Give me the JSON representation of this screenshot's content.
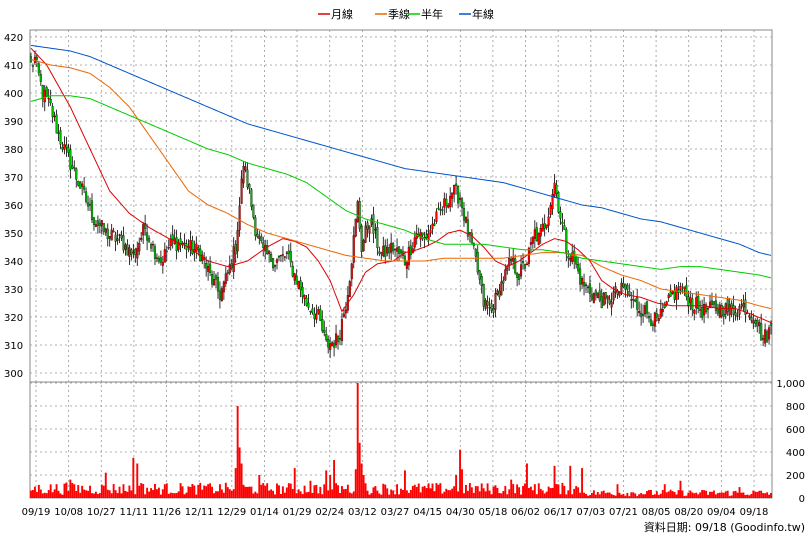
{
  "chart_data": [
    {
      "type": "candlestick",
      "panel": "price",
      "ylim": [
        300,
        420
      ],
      "yticks": [
        300,
        310,
        320,
        330,
        340,
        350,
        360,
        370,
        380,
        390,
        400,
        410,
        420
      ],
      "grid": true,
      "legend_position": "top-center",
      "up_color": "#ff0000",
      "down_color": "#00bb00",
      "series": [
        {
          "name": "月線",
          "color": "#dd0000",
          "key": "ma20"
        },
        {
          "name": "季線",
          "color": "#ee6600",
          "key": "ma60"
        },
        {
          "name": "半年",
          "color": "#00cc00",
          "key": "ma120"
        },
        {
          "name": "年線",
          "color": "#0055cc",
          "key": "ma240"
        }
      ],
      "anchors": {
        "close": [
          [
            0,
            410
          ],
          [
            2,
            412
          ],
          [
            6,
            400
          ],
          [
            10,
            395
          ],
          [
            14,
            385
          ],
          [
            20,
            375
          ],
          [
            26,
            365
          ],
          [
            32,
            355
          ],
          [
            38,
            350
          ],
          [
            46,
            347
          ],
          [
            52,
            342
          ],
          [
            58,
            352
          ],
          [
            62,
            345
          ],
          [
            66,
            340
          ],
          [
            72,
            347
          ],
          [
            80,
            345
          ],
          [
            86,
            343
          ],
          [
            92,
            333
          ],
          [
            96,
            328
          ],
          [
            100,
            335
          ],
          [
            104,
            345
          ],
          [
            106,
            360
          ],
          [
            108,
            375
          ],
          [
            110,
            368
          ],
          [
            114,
            352
          ],
          [
            118,
            343
          ],
          [
            124,
            340
          ],
          [
            130,
            342
          ],
          [
            134,
            335
          ],
          [
            140,
            325
          ],
          [
            146,
            320
          ],
          [
            150,
            310
          ],
          [
            156,
            312
          ],
          [
            160,
            325
          ],
          [
            162,
            335
          ],
          [
            166,
            360
          ],
          [
            168,
            345
          ],
          [
            172,
            355
          ],
          [
            178,
            342
          ],
          [
            184,
            345
          ],
          [
            190,
            340
          ],
          [
            196,
            350
          ],
          [
            200,
            348
          ],
          [
            206,
            355
          ],
          [
            210,
            360
          ],
          [
            214,
            365
          ],
          [
            218,
            363
          ],
          [
            222,
            350
          ],
          [
            226,
            340
          ],
          [
            230,
            325
          ],
          [
            234,
            322
          ],
          [
            238,
            330
          ],
          [
            244,
            340
          ],
          [
            248,
            335
          ],
          [
            252,
            340
          ],
          [
            256,
            350
          ],
          [
            258,
            348
          ],
          [
            262,
            355
          ],
          [
            266,
            368
          ],
          [
            268,
            360
          ],
          [
            272,
            345
          ],
          [
            276,
            340
          ],
          [
            280,
            332
          ],
          [
            286,
            328
          ],
          [
            292,
            325
          ],
          [
            296,
            328
          ],
          [
            302,
            330
          ],
          [
            306,
            325
          ],
          [
            312,
            322
          ],
          [
            318,
            318
          ],
          [
            322,
            322
          ],
          [
            326,
            328
          ],
          [
            330,
            330
          ],
          [
            336,
            325
          ],
          [
            342,
            322
          ],
          [
            348,
            323
          ],
          [
            352,
            323
          ],
          [
            356,
            322
          ],
          [
            362,
            324
          ],
          [
            368,
            320
          ],
          [
            372,
            312
          ],
          [
            376,
            316
          ]
        ],
        "ma20": [
          [
            0,
            416
          ],
          [
            8,
            410
          ],
          [
            20,
            395
          ],
          [
            30,
            380
          ],
          [
            40,
            365
          ],
          [
            50,
            357
          ],
          [
            60,
            352
          ],
          [
            70,
            348
          ],
          [
            80,
            345
          ],
          [
            90,
            340
          ],
          [
            100,
            338
          ],
          [
            110,
            340
          ],
          [
            120,
            345
          ],
          [
            128,
            348
          ],
          [
            134,
            347
          ],
          [
            140,
            345
          ],
          [
            146,
            340
          ],
          [
            152,
            333
          ],
          [
            158,
            322
          ],
          [
            164,
            328
          ],
          [
            170,
            336
          ],
          [
            176,
            339
          ],
          [
            184,
            340
          ],
          [
            190,
            343
          ],
          [
            196,
            344
          ],
          [
            200,
            345
          ],
          [
            206,
            347
          ],
          [
            212,
            350
          ],
          [
            218,
            351
          ],
          [
            224,
            349
          ],
          [
            230,
            345
          ],
          [
            236,
            340
          ],
          [
            242,
            338
          ],
          [
            248,
            340
          ],
          [
            252,
            342
          ],
          [
            256,
            344
          ],
          [
            260,
            346
          ],
          [
            266,
            348
          ],
          [
            272,
            347
          ],
          [
            278,
            344
          ],
          [
            284,
            340
          ],
          [
            290,
            333
          ],
          [
            296,
            330
          ],
          [
            302,
            328
          ],
          [
            310,
            327
          ],
          [
            318,
            325
          ],
          [
            326,
            324
          ],
          [
            334,
            324
          ],
          [
            342,
            324
          ],
          [
            350,
            323
          ],
          [
            358,
            323
          ],
          [
            366,
            321
          ],
          [
            376,
            318
          ]
        ],
        "ma60": [
          [
            0,
            412
          ],
          [
            10,
            410
          ],
          [
            20,
            409
          ],
          [
            30,
            407
          ],
          [
            40,
            402
          ],
          [
            50,
            395
          ],
          [
            60,
            385
          ],
          [
            70,
            375
          ],
          [
            80,
            365
          ],
          [
            90,
            360
          ],
          [
            100,
            357
          ],
          [
            110,
            353
          ],
          [
            120,
            350
          ],
          [
            130,
            348
          ],
          [
            140,
            346
          ],
          [
            150,
            344
          ],
          [
            160,
            342
          ],
          [
            170,
            341
          ],
          [
            180,
            340
          ],
          [
            190,
            340
          ],
          [
            200,
            340
          ],
          [
            210,
            341
          ],
          [
            220,
            341
          ],
          [
            230,
            341
          ],
          [
            240,
            341
          ],
          [
            250,
            342
          ],
          [
            260,
            343
          ],
          [
            270,
            343
          ],
          [
            280,
            342
          ],
          [
            290,
            338
          ],
          [
            300,
            335
          ],
          [
            310,
            333
          ],
          [
            320,
            330
          ],
          [
            330,
            329
          ],
          [
            340,
            328
          ],
          [
            350,
            327
          ],
          [
            360,
            326
          ],
          [
            370,
            324
          ],
          [
            376,
            323
          ]
        ],
        "ma120": [
          [
            0,
            397
          ],
          [
            10,
            399
          ],
          [
            20,
            399
          ],
          [
            30,
            398
          ],
          [
            40,
            395
          ],
          [
            50,
            392
          ],
          [
            60,
            389
          ],
          [
            70,
            386
          ],
          [
            80,
            383
          ],
          [
            90,
            380
          ],
          [
            100,
            378
          ],
          [
            110,
            375
          ],
          [
            120,
            373
          ],
          [
            130,
            371
          ],
          [
            140,
            368
          ],
          [
            150,
            363
          ],
          [
            160,
            358
          ],
          [
            170,
            355
          ],
          [
            180,
            353
          ],
          [
            190,
            351
          ],
          [
            200,
            348
          ],
          [
            210,
            346
          ],
          [
            220,
            346
          ],
          [
            230,
            346
          ],
          [
            240,
            345
          ],
          [
            250,
            344
          ],
          [
            260,
            344
          ],
          [
            270,
            343
          ],
          [
            280,
            341
          ],
          [
            290,
            340
          ],
          [
            300,
            339
          ],
          [
            310,
            338
          ],
          [
            320,
            337
          ],
          [
            330,
            338
          ],
          [
            340,
            338
          ],
          [
            350,
            337
          ],
          [
            360,
            336
          ],
          [
            370,
            335
          ],
          [
            376,
            334
          ]
        ],
        "ma240": [
          [
            0,
            417
          ],
          [
            10,
            416
          ],
          [
            20,
            415
          ],
          [
            30,
            413
          ],
          [
            40,
            410
          ],
          [
            50,
            407
          ],
          [
            60,
            404
          ],
          [
            70,
            401
          ],
          [
            80,
            398
          ],
          [
            90,
            395
          ],
          [
            100,
            392
          ],
          [
            110,
            389
          ],
          [
            120,
            387
          ],
          [
            130,
            385
          ],
          [
            140,
            383
          ],
          [
            150,
            381
          ],
          [
            160,
            379
          ],
          [
            170,
            377
          ],
          [
            180,
            375
          ],
          [
            190,
            373
          ],
          [
            200,
            372
          ],
          [
            210,
            371
          ],
          [
            220,
            370
          ],
          [
            230,
            369
          ],
          [
            240,
            368
          ],
          [
            250,
            366
          ],
          [
            260,
            364
          ],
          [
            270,
            362
          ],
          [
            280,
            360
          ],
          [
            290,
            359
          ],
          [
            300,
            357
          ],
          [
            310,
            355
          ],
          [
            320,
            354
          ],
          [
            330,
            352
          ],
          [
            340,
            350
          ],
          [
            350,
            348
          ],
          [
            360,
            346
          ],
          [
            370,
            343
          ],
          [
            376,
            342
          ]
        ]
      }
    },
    {
      "type": "bar",
      "panel": "volume",
      "ylim": [
        0,
        1000
      ],
      "ytick_labels": [
        "0",
        "200",
        "400",
        "600",
        "800",
        "1,000"
      ],
      "bar_color": "#ff0000",
      "base_volume": 95,
      "spikes": [
        [
          18,
          135
        ],
        [
          20,
          160
        ],
        [
          38,
          220
        ],
        [
          52,
          350
        ],
        [
          54,
          300
        ],
        [
          56,
          130
        ],
        [
          90,
          120
        ],
        [
          104,
          260
        ],
        [
          105,
          800
        ],
        [
          106,
          440
        ],
        [
          107,
          300
        ],
        [
          116,
          200
        ],
        [
          134,
          260
        ],
        [
          142,
          150
        ],
        [
          150,
          240
        ],
        [
          152,
          200
        ],
        [
          154,
          330
        ],
        [
          165,
          250
        ],
        [
          166,
          1000
        ],
        [
          167,
          480
        ],
        [
          168,
          300
        ],
        [
          169,
          200
        ],
        [
          190,
          240
        ],
        [
          216,
          200
        ],
        [
          218,
          420
        ],
        [
          219,
          250
        ],
        [
          244,
          160
        ],
        [
          252,
          300
        ],
        [
          256,
          120
        ],
        [
          266,
          280
        ],
        [
          274,
          280
        ],
        [
          280,
          260
        ],
        [
          298,
          120
        ],
        [
          322,
          120
        ],
        [
          330,
          150
        ],
        [
          360,
          95
        ]
      ]
    }
  ],
  "x_axis": {
    "labels": [
      "09/19",
      "10/08",
      "10/27",
      "11/11",
      "11/26",
      "12/11",
      "12/29",
      "01/14",
      "01/29",
      "02/24",
      "03/12",
      "03/27",
      "04/15",
      "04/30",
      "05/18",
      "06/02",
      "06/17",
      "07/03",
      "07/21",
      "08/05",
      "08/20",
      "09/04",
      "09/18"
    ]
  },
  "credit": "資料日期: 09/18 (Goodinfo.tw)"
}
